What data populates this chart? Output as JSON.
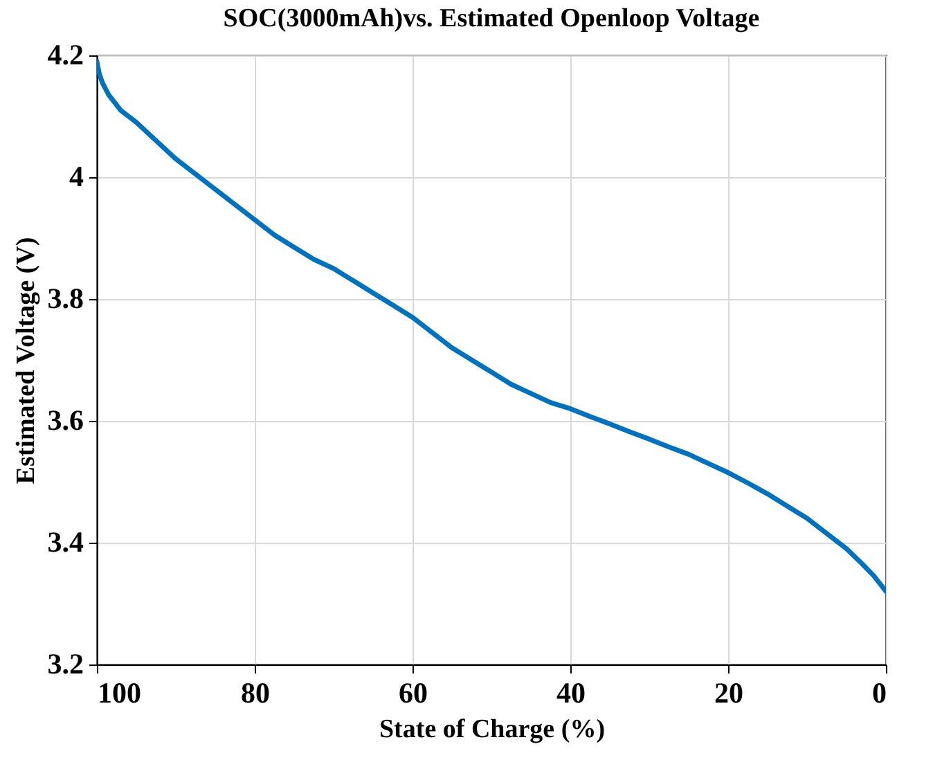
{
  "chart_data": {
    "type": "line",
    "title": "SOC(3000mAh)vs. Estimated Openloop Voltage",
    "xlabel": "State of Charge (%)",
    "ylabel": "Estimated Voltage (V)",
    "x": [
      100,
      99.7,
      99.3,
      98.5,
      97,
      95,
      92.5,
      90,
      87.5,
      85,
      82.5,
      80,
      77.5,
      75,
      72.5,
      70,
      67.5,
      65,
      62.5,
      60,
      57.5,
      55,
      52.5,
      50,
      47.5,
      45,
      42.5,
      40,
      37.5,
      35,
      32.5,
      30,
      27.5,
      25,
      22.5,
      20,
      17.5,
      15,
      12.5,
      10,
      7.5,
      5,
      3,
      1.5,
      0
    ],
    "series": [
      {
        "color": "#0072bd",
        "values": [
          4.19,
          4.17,
          4.155,
          4.135,
          4.11,
          4.09,
          4.06,
          4.03,
          4.005,
          3.98,
          3.955,
          3.93,
          3.905,
          3.885,
          3.865,
          3.85,
          3.83,
          3.81,
          3.79,
          3.77,
          3.745,
          3.72,
          3.7,
          3.68,
          3.66,
          3.645,
          3.63,
          3.62,
          3.607,
          3.595,
          3.582,
          3.57,
          3.557,
          3.545,
          3.53,
          3.515,
          3.498,
          3.48,
          3.46,
          3.44,
          3.415,
          3.39,
          3.365,
          3.345,
          3.32
        ]
      }
    ],
    "xlim": [
      100,
      0
    ],
    "ylim": [
      3.2,
      4.2
    ],
    "xticks": [
      100,
      80,
      60,
      40,
      20,
      0
    ],
    "yticks": [
      3.2,
      3.4,
      3.6,
      3.8,
      4,
      4.2
    ],
    "grid": true,
    "line_style": "solid",
    "marker": "none"
  }
}
